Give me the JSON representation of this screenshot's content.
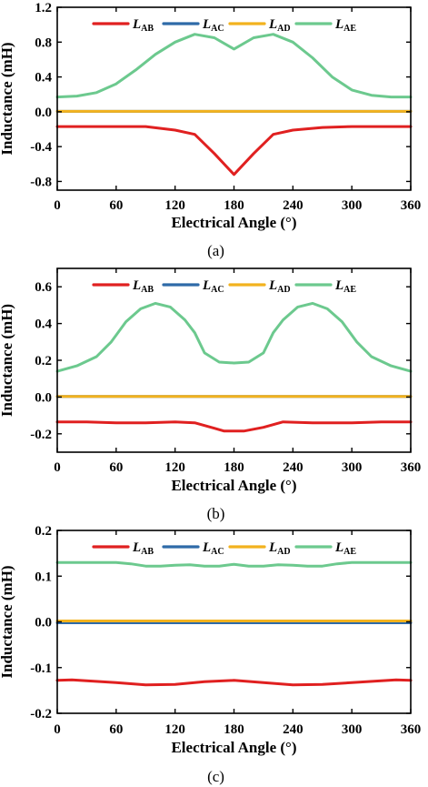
{
  "colors": {
    "L_AB": "#e02020",
    "L_AC": "#2e6aa8",
    "L_AD": "#f2b21e",
    "L_AE": "#6cc98e"
  },
  "chart_data": [
    {
      "type": "line",
      "caption": "(a)",
      "xlabel": "Electrical Angle (°)",
      "ylabel": "Inductance (mH)",
      "xlim": [
        0,
        360
      ],
      "ylim": [
        -0.9,
        1.2
      ],
      "xticks": [
        "0",
        "60",
        "120",
        "180",
        "240",
        "300",
        "360"
      ],
      "yticks": [
        "1.2",
        "0.8",
        "0.4",
        "0.0",
        "-0.4",
        "-0.8"
      ],
      "ytick_values": [
        1.2,
        0.8,
        0.4,
        0.0,
        -0.4,
        -0.8
      ],
      "legend": [
        {
          "key": "L_AB",
          "main": "L",
          "sub": "AB"
        },
        {
          "key": "L_AC",
          "main": "L",
          "sub": "AC"
        },
        {
          "key": "L_AD",
          "main": "L",
          "sub": "AD"
        },
        {
          "key": "L_AE",
          "main": "L",
          "sub": "AE"
        }
      ],
      "series": [
        {
          "key": "L_AB",
          "x": [
            0,
            30,
            60,
            90,
            120,
            140,
            160,
            180,
            200,
            220,
            240,
            270,
            300,
            330,
            360
          ],
          "y": [
            -0.17,
            -0.17,
            -0.17,
            -0.17,
            -0.21,
            -0.26,
            -0.48,
            -0.72,
            -0.48,
            -0.26,
            -0.21,
            -0.18,
            -0.17,
            -0.17,
            -0.17
          ]
        },
        {
          "key": "L_AC",
          "x": [
            0,
            60,
            120,
            180,
            240,
            300,
            360
          ],
          "y": [
            0.005,
            0.005,
            0.005,
            0.005,
            0.005,
            0.005,
            0.005
          ]
        },
        {
          "key": "L_AD",
          "x": [
            0,
            60,
            120,
            180,
            240,
            300,
            360
          ],
          "y": [
            0.005,
            0.005,
            0.005,
            0.005,
            0.005,
            0.005,
            0.005
          ]
        },
        {
          "key": "L_AE",
          "x": [
            0,
            20,
            40,
            60,
            80,
            100,
            120,
            140,
            160,
            180,
            200,
            220,
            240,
            260,
            280,
            300,
            320,
            340,
            360
          ],
          "y": [
            0.17,
            0.18,
            0.22,
            0.32,
            0.48,
            0.66,
            0.8,
            0.89,
            0.85,
            0.72,
            0.85,
            0.89,
            0.8,
            0.62,
            0.4,
            0.25,
            0.19,
            0.17,
            0.17
          ]
        }
      ]
    },
    {
      "type": "line",
      "caption": "(b)",
      "xlabel": "Electrical Angle (°)",
      "ylabel": "Inductance (mH)",
      "xlim": [
        0,
        360
      ],
      "ylim": [
        -0.3,
        0.7
      ],
      "xticks": [
        "0",
        "60",
        "120",
        "180",
        "240",
        "300",
        "360"
      ],
      "yticks": [
        "0.6",
        "0.4",
        "0.2",
        "0.0",
        "-0.2"
      ],
      "ytick_values": [
        0.6,
        0.4,
        0.2,
        0.0,
        -0.2
      ],
      "legend": [
        {
          "key": "L_AB",
          "main": "L",
          "sub": "AB"
        },
        {
          "key": "L_AC",
          "main": "L",
          "sub": "AC"
        },
        {
          "key": "L_AD",
          "main": "L",
          "sub": "AD"
        },
        {
          "key": "L_AE",
          "main": "L",
          "sub": "AE"
        }
      ],
      "series": [
        {
          "key": "L_AB",
          "x": [
            0,
            30,
            60,
            90,
            120,
            140,
            160,
            170,
            190,
            210,
            230,
            260,
            300,
            330,
            360
          ],
          "y": [
            -0.135,
            -0.135,
            -0.14,
            -0.14,
            -0.135,
            -0.14,
            -0.17,
            -0.185,
            -0.185,
            -0.165,
            -0.135,
            -0.14,
            -0.14,
            -0.135,
            -0.135
          ]
        },
        {
          "key": "L_AC",
          "x": [
            0,
            60,
            120,
            180,
            240,
            300,
            360
          ],
          "y": [
            0.003,
            0.003,
            0.003,
            0.003,
            0.003,
            0.003,
            0.003
          ]
        },
        {
          "key": "L_AD",
          "x": [
            0,
            60,
            120,
            180,
            240,
            300,
            360
          ],
          "y": [
            0.003,
            0.003,
            0.003,
            0.003,
            0.003,
            0.003,
            0.003
          ]
        },
        {
          "key": "L_AE",
          "x": [
            0,
            20,
            40,
            55,
            70,
            85,
            100,
            115,
            130,
            140,
            150,
            165,
            180,
            195,
            210,
            220,
            230,
            245,
            260,
            275,
            290,
            305,
            320,
            340,
            360
          ],
          "y": [
            0.14,
            0.17,
            0.22,
            0.3,
            0.41,
            0.48,
            0.51,
            0.49,
            0.42,
            0.35,
            0.24,
            0.19,
            0.185,
            0.19,
            0.24,
            0.35,
            0.42,
            0.49,
            0.51,
            0.48,
            0.41,
            0.3,
            0.22,
            0.17,
            0.14
          ]
        }
      ]
    },
    {
      "type": "line",
      "caption": "(c)",
      "xlabel": "Electrical Angle (°)",
      "ylabel": "Inductance (mH)",
      "xlim": [
        0,
        360
      ],
      "ylim": [
        -0.2,
        0.2
      ],
      "xticks": [
        "0",
        "60",
        "120",
        "180",
        "240",
        "300",
        "360"
      ],
      "yticks": [
        "0.2",
        "0.1",
        "0.0",
        "-0.1",
        "-0.2"
      ],
      "ytick_values": [
        0.2,
        0.1,
        0.0,
        -0.1,
        -0.2
      ],
      "legend": [
        {
          "key": "L_AB",
          "main": "L",
          "sub": "AB"
        },
        {
          "key": "L_AC",
          "main": "L",
          "sub": "AC"
        },
        {
          "key": "L_AD",
          "main": "L",
          "sub": "AD"
        },
        {
          "key": "L_AE",
          "main": "L",
          "sub": "AE"
        }
      ],
      "series": [
        {
          "key": "L_AB",
          "x": [
            0,
            15,
            30,
            60,
            90,
            120,
            150,
            180,
            210,
            240,
            270,
            300,
            330,
            345,
            360
          ],
          "y": [
            -0.128,
            -0.127,
            -0.129,
            -0.133,
            -0.138,
            -0.137,
            -0.131,
            -0.128,
            -0.133,
            -0.138,
            -0.137,
            -0.133,
            -0.129,
            -0.127,
            -0.128
          ]
        },
        {
          "key": "L_AC",
          "x": [
            0,
            60,
            120,
            180,
            240,
            300,
            360
          ],
          "y": [
            -0.002,
            -0.002,
            -0.002,
            -0.002,
            -0.002,
            -0.002,
            -0.002
          ]
        },
        {
          "key": "L_AD",
          "x": [
            0,
            60,
            120,
            180,
            240,
            300,
            360
          ],
          "y": [
            0.002,
            0.002,
            0.002,
            0.002,
            0.002,
            0.002,
            0.002
          ]
        },
        {
          "key": "L_AE",
          "x": [
            0,
            30,
            60,
            75,
            90,
            105,
            120,
            135,
            150,
            165,
            180,
            195,
            210,
            225,
            240,
            255,
            270,
            285,
            300,
            330,
            360
          ],
          "y": [
            0.13,
            0.13,
            0.13,
            0.127,
            0.122,
            0.122,
            0.124,
            0.125,
            0.122,
            0.122,
            0.126,
            0.122,
            0.122,
            0.125,
            0.124,
            0.122,
            0.122,
            0.127,
            0.13,
            0.13,
            0.13
          ]
        }
      ]
    }
  ]
}
